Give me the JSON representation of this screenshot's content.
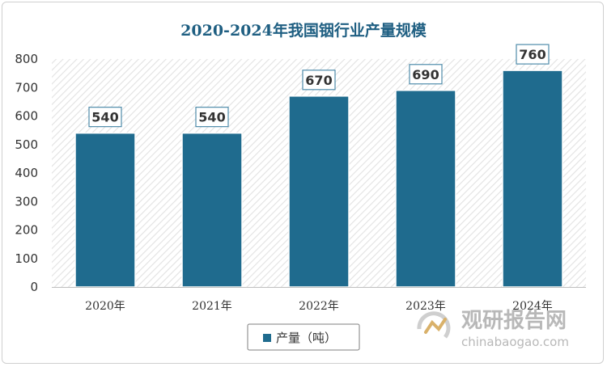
{
  "chart_data": {
    "type": "bar",
    "title": "2020-2024年我国铟行业产量规模",
    "categories": [
      "2020年",
      "2021年",
      "2022年",
      "2023年",
      "2024年"
    ],
    "series": [
      {
        "name": "产量（吨）",
        "values": [
          540,
          540,
          670,
          690,
          760
        ],
        "color": "#1f6b8e"
      }
    ],
    "ylim": [
      0,
      800
    ],
    "yticks": [
      0,
      100,
      200,
      300,
      400,
      500,
      600,
      700,
      800
    ],
    "xlabel": "",
    "ylabel": "",
    "legend": "bottom-center",
    "grid": false,
    "data_labels": true
  },
  "watermark": {
    "brand_cn": "观研报告网",
    "brand_en": "chinabaogao.com"
  }
}
